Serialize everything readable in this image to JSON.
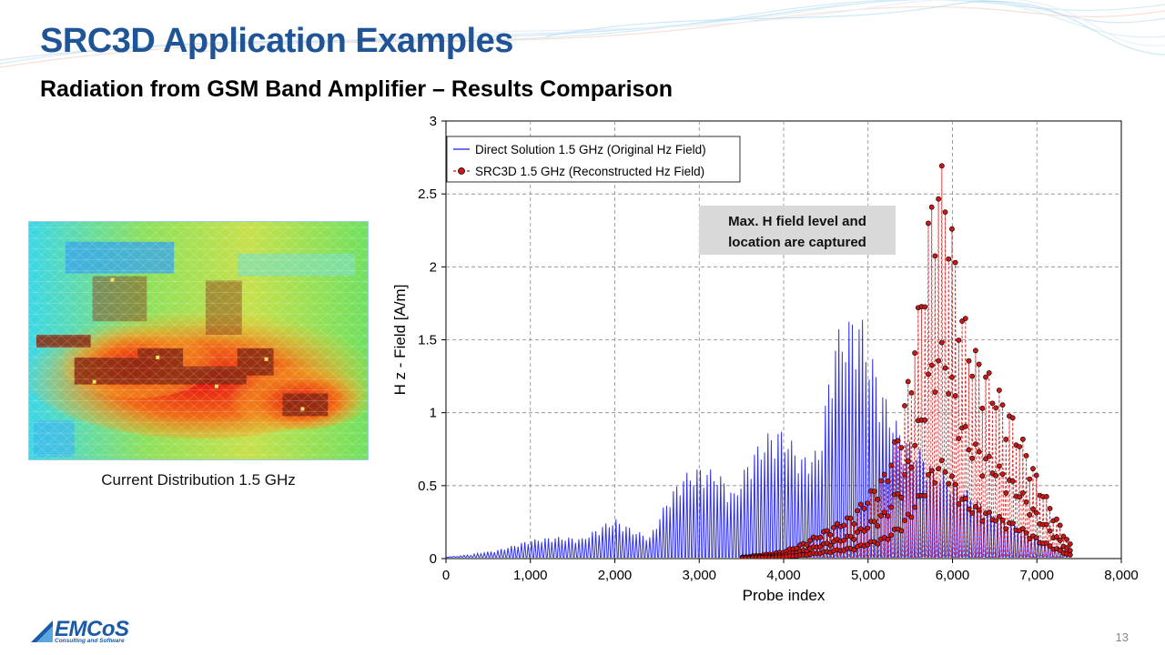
{
  "slide": {
    "title": "SRC3D Application Examples",
    "subtitle": "Radiation from GSM Band Amplifier – Results Comparison",
    "page_number": "13"
  },
  "figure": {
    "caption": "Current Distribution 1.5 GHz"
  },
  "logo": {
    "name": "EMCoS",
    "tagline": "Consulting and Software",
    "icon": "emcos-triangle-logo"
  },
  "colors": {
    "title": "#1f5496",
    "direct_series": "#1a1ae6",
    "src3d_series": "#cc1010",
    "annotation_bg": "#d9d9d9"
  },
  "chart_data": {
    "type": "line",
    "xlabel": "Probe index",
    "ylabel": "H z - Field [A/m]",
    "xlim": [
      0,
      8000
    ],
    "ylim": [
      0,
      3
    ],
    "xticks": [
      "0",
      "1,000",
      "2,000",
      "3,000",
      "4,000",
      "5,000",
      "6,000",
      "7,000",
      "8,000"
    ],
    "yticks": [
      "0",
      "0.5",
      "1",
      "1.5",
      "2",
      "2.5",
      "3"
    ],
    "grid": true,
    "legend_position": "top-left",
    "annotation": "Max. H field level and location are captured",
    "series": [
      {
        "name": "Direct Solution 1.5 GHz (Original Hz Field)",
        "style": "line",
        "color": "#1a1ae6",
        "peak_envelope": {
          "x": [
            0,
            300,
            600,
            1000,
            1300,
            1600,
            1900,
            2000,
            2200,
            2400,
            2600,
            2800,
            3000,
            3200,
            3400,
            3600,
            3800,
            3900,
            4000,
            4200,
            4400,
            4600,
            4800,
            4900,
            5000,
            5200,
            5400,
            5600,
            5800,
            6000,
            6200,
            6400,
            6600,
            6800,
            7000,
            7200,
            7380
          ],
          "y": [
            0.01,
            0.03,
            0.06,
            0.13,
            0.15,
            0.14,
            0.25,
            0.27,
            0.2,
            0.15,
            0.4,
            0.58,
            0.63,
            0.6,
            0.45,
            0.72,
            0.86,
            0.89,
            0.88,
            0.7,
            0.75,
            1.55,
            1.67,
            1.69,
            1.45,
            1.1,
            0.85,
            0.75,
            0.6,
            0.55,
            0.45,
            0.35,
            0.28,
            0.2,
            0.15,
            0.1,
            0.05
          ]
        }
      },
      {
        "name": "SRC3D 1.5 GHz (Reconstructed Hz Field)",
        "style": "dashed-line-with-circle-markers",
        "color": "#cc1010",
        "peak_envelope": {
          "x": [
            3500,
            3800,
            4000,
            4200,
            4500,
            4800,
            5000,
            5200,
            5400,
            5600,
            5700,
            5800,
            5850,
            5900,
            6000,
            6100,
            6200,
            6400,
            6600,
            6800,
            7000,
            7200,
            7380
          ],
          "y": [
            0.01,
            0.03,
            0.05,
            0.1,
            0.2,
            0.3,
            0.45,
            0.6,
            1.0,
            1.8,
            2.35,
            2.68,
            2.7,
            2.67,
            2.2,
            1.75,
            1.5,
            1.3,
            1.1,
            0.85,
            0.55,
            0.3,
            0.1
          ]
        }
      }
    ]
  }
}
